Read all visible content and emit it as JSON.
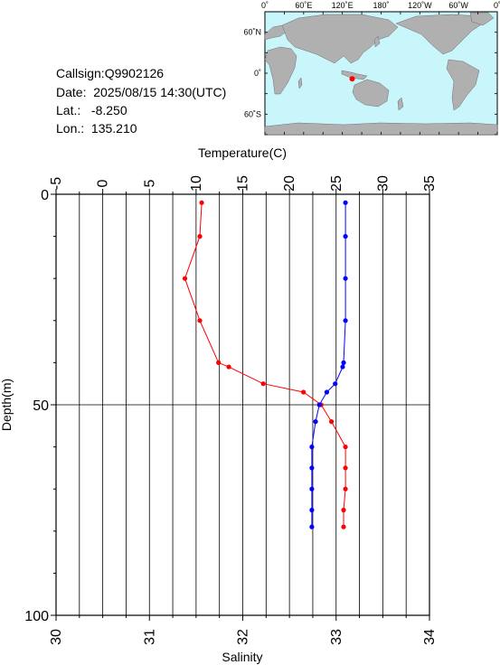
{
  "station": {
    "callsign": "Callsign:Q9902126",
    "date": "Date:  2025/08/15 14:30(UTC)",
    "lat": "Lat.:   -8.250",
    "lon": "Lon.:  135.210"
  },
  "map": {
    "lon_labels": [
      "0˚",
      "60˚E",
      "120˚E",
      "180˚",
      "120˚W",
      "60˚W",
      "0˚"
    ],
    "lat_labels": [
      "60˚N",
      "0˚",
      "60˚S"
    ],
    "marker": {
      "lat": -8.25,
      "lon": 135.21
    },
    "colors": {
      "ocean": "#c9f6fb",
      "land": "#b0b0b0",
      "marker": "#ff0000"
    }
  },
  "chart_data": {
    "type": "line",
    "top_axis": {
      "label": "Temperature(C)",
      "range": [
        -5,
        35
      ],
      "ticks": [
        -5,
        0,
        5,
        10,
        15,
        20,
        25,
        30,
        35
      ]
    },
    "bottom_axis": {
      "label": "Salinity",
      "range": [
        30,
        34
      ],
      "ticks": [
        30,
        31,
        32,
        33,
        34
      ]
    },
    "y_axis": {
      "label": "Depth(m)",
      "range": [
        0,
        100
      ],
      "ticks": [
        0,
        50,
        100
      ],
      "inverted": true
    },
    "grid": true,
    "series": [
      {
        "color": "#ff0000",
        "axis": "temperature",
        "points": [
          [
            10.6,
            2
          ],
          [
            10.4,
            10
          ],
          [
            8.8,
            20
          ],
          [
            10.4,
            30
          ],
          [
            12.4,
            40
          ],
          [
            13.5,
            41
          ],
          [
            17.2,
            45
          ],
          [
            21.5,
            47
          ],
          [
            23.4,
            50
          ],
          [
            24.5,
            54
          ],
          [
            26.0,
            60
          ],
          [
            26.0,
            65
          ],
          [
            26.0,
            70
          ],
          [
            25.8,
            75
          ],
          [
            25.8,
            79
          ]
        ]
      },
      {
        "color": "#0000ff",
        "axis": "salinity",
        "points": [
          [
            33.1,
            2
          ],
          [
            33.1,
            10
          ],
          [
            33.1,
            20
          ],
          [
            33.1,
            30
          ],
          [
            33.08,
            40
          ],
          [
            33.07,
            41
          ],
          [
            32.99,
            45
          ],
          [
            32.9,
            47
          ],
          [
            32.82,
            50
          ],
          [
            32.78,
            54
          ],
          [
            32.74,
            60
          ],
          [
            32.74,
            65
          ],
          [
            32.74,
            70
          ],
          [
            32.74,
            75
          ],
          [
            32.74,
            79
          ]
        ]
      }
    ]
  }
}
